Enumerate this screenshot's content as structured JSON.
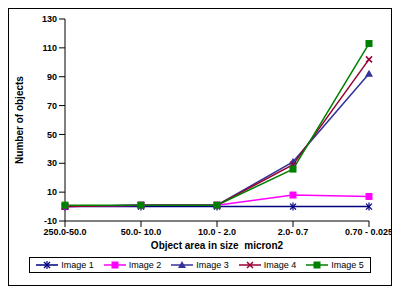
{
  "chart_data": {
    "type": "line",
    "x_label": "Object area in size  micron2",
    "y_label": "Number of objects",
    "categories": [
      "250.0-50.0",
      "50.0- 10.0",
      "10.0 - 2.0",
      "2.0- 0.7",
      "0.70 - 0.025"
    ],
    "series": [
      {
        "name": "Image 1",
        "color": "#000080",
        "marker": "star",
        "values": [
          0,
          0,
          0,
          0,
          0
        ]
      },
      {
        "name": "Image 2",
        "color": "#ff00ff",
        "marker": "square",
        "values": [
          0,
          1,
          1,
          8,
          7
        ]
      },
      {
        "name": "Image 3",
        "color": "#333399",
        "marker": "triangle",
        "values": [
          0,
          1,
          1,
          31,
          92
        ]
      },
      {
        "name": "Image 4",
        "color": "#990033",
        "marker": "x",
        "values": [
          0,
          1,
          1,
          29,
          102
        ]
      },
      {
        "name": "Image 5",
        "color": "#008000",
        "marker": "square",
        "values": [
          1,
          1,
          1,
          26,
          113
        ]
      }
    ],
    "ylim": [
      -10,
      130
    ],
    "yticks": [
      -10,
      10,
      30,
      50,
      70,
      90,
      110,
      130
    ],
    "grid": false,
    "legend": "bottom"
  }
}
